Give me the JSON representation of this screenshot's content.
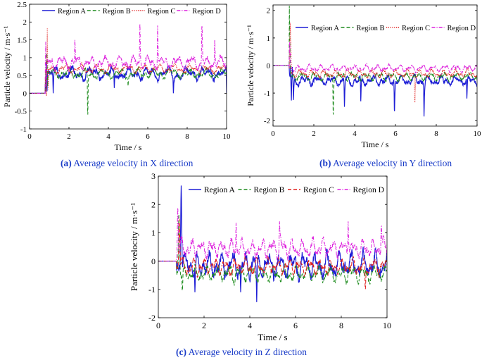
{
  "figure": {
    "colors": {
      "region_a": "#1f1fd6",
      "region_b": "#1e8c1e",
      "region_c": "#e0201f",
      "region_d": "#dd22dd",
      "axis": "#000000",
      "caption": "#1a3cc8"
    }
  },
  "chart_data": [
    {
      "id": "a",
      "type": "line",
      "caption_label": "(a)",
      "caption_text": "Average velocity in X direction",
      "xlabel": "Time / s",
      "ylabel": "Particle velocity / m·s⁻¹",
      "xlim": [
        0,
        10
      ],
      "ylim": [
        -1,
        2.5
      ],
      "xticks": [
        "0",
        "2",
        "4",
        "6",
        "8",
        "10"
      ],
      "yticks": [
        "-1",
        "-0.5",
        "0",
        "0.5",
        "1",
        "1.5",
        "2",
        "2.5"
      ],
      "legend_position": "top",
      "series": [
        {
          "name": "Region A",
          "dash": "solid",
          "mean": 0.55,
          "amp": 0.22,
          "spike_t": 0.85,
          "spike_v": 1.0,
          "dips": [
            [
              1.2,
              0.0
            ],
            [
              4.3,
              0.15
            ],
            [
              7.3,
              0.0
            ],
            [
              10.0,
              0.0
            ]
          ]
        },
        {
          "name": "Region B",
          "dash": "dashed",
          "mean": 0.55,
          "amp": 0.16,
          "spike_t": 0.88,
          "spike_v": 1.2,
          "dips": [
            [
              2.95,
              -0.78
            ],
            [
              5.0,
              0.2
            ]
          ]
        },
        {
          "name": "Region C",
          "dash": "dotted",
          "mean": 0.68,
          "amp": 0.15,
          "spike_t": 0.9,
          "spike_v": 1.82,
          "dips": []
        },
        {
          "name": "Region D",
          "dash": "dashdot",
          "mean": 0.86,
          "amp": 0.22,
          "spike_t": 0.82,
          "spike_v": 1.4,
          "peaks": [
            [
              2.3,
              1.5
            ],
            [
              5.6,
              1.95
            ],
            [
              6.5,
              1.9
            ],
            [
              8.75,
              2.02
            ],
            [
              9.4,
              1.5
            ]
          ]
        }
      ]
    },
    {
      "id": "b",
      "type": "line",
      "caption_label": "(b)",
      "caption_text": "Average velocity in Y direction",
      "xlabel": "Time / s",
      "ylabel": "Particle velocity / m·s⁻¹",
      "xlim": [
        0,
        10
      ],
      "ylim": [
        -2.2,
        2.2
      ],
      "xticks": [
        "0",
        "2",
        "4",
        "6",
        "8",
        "10"
      ],
      "yticks": [
        "-2",
        "-1",
        "0",
        "1",
        "2"
      ],
      "legend_position": "top",
      "series": [
        {
          "name": "Region A",
          "dash": "solid",
          "mean": -0.55,
          "amp": 0.22,
          "spike_t": 0.9,
          "spike_v": -1.3,
          "dips": [
            [
              1.0,
              -1.25
            ],
            [
              3.5,
              -1.5
            ],
            [
              4.3,
              -1.3
            ],
            [
              5.95,
              -1.85
            ],
            [
              7.4,
              -1.85
            ],
            [
              9.5,
              -1.2
            ]
          ]
        },
        {
          "name": "Region B",
          "dash": "dashed",
          "mean": -0.4,
          "amp": 0.18,
          "spike_t": 0.8,
          "spike_v": 2.05,
          "dips": [
            [
              2.95,
              -2.0
            ]
          ]
        },
        {
          "name": "Region C",
          "dash": "dotted",
          "mean": -0.3,
          "amp": 0.18,
          "spike_t": 0.85,
          "spike_v": 1.7,
          "dips": [
            [
              6.95,
              -1.5
            ]
          ]
        },
        {
          "name": "Region D",
          "dash": "dashdot",
          "mean": -0.1,
          "amp": 0.15,
          "spike_t": 0.82,
          "spike_v": 0.8,
          "dips": []
        }
      ]
    },
    {
      "id": "c",
      "type": "line",
      "caption_label": "(c)",
      "caption_text": "Average velocity in Z direction",
      "xlabel": "Time / s",
      "ylabel": "Particle velocity / m·s⁻¹",
      "xlim": [
        0,
        10
      ],
      "ylim": [
        -2,
        3
      ],
      "xticks": [
        "0",
        "2",
        "4",
        "6",
        "8",
        "10"
      ],
      "yticks": [
        "-2",
        "-1",
        "0",
        "1",
        "2",
        "3"
      ],
      "legend_position": "top",
      "series": [
        {
          "name": "Region A",
          "dash": "solid",
          "mean": -0.15,
          "amp": 0.55,
          "spike_t": 1.0,
          "spike_v": 2.8,
          "dips": [
            [
              4.3,
              -1.45
            ],
            [
              3.6,
              -1.1
            ],
            [
              1.6,
              -1.1
            ]
          ]
        },
        {
          "name": "Region B",
          "dash": "dashed",
          "mean": -0.45,
          "amp": 0.35,
          "spike_t": 0.9,
          "spike_v": 1.8,
          "dips": [
            [
              1.05,
              -1.15
            ]
          ]
        },
        {
          "name": "Region C",
          "dash": "dashed",
          "mean": -0.2,
          "amp": 0.35,
          "spike_t": 0.92,
          "spike_v": 1.6,
          "dips": [
            [
              9.05,
              -1.15
            ]
          ]
        },
        {
          "name": "Region D",
          "dash": "dashdot",
          "mean": 0.45,
          "amp": 0.4,
          "spike_t": 0.85,
          "spike_v": 2.0,
          "peaks": [
            [
              3.4,
              1.35
            ],
            [
              5.3,
              1.4
            ],
            [
              8.3,
              1.4
            ],
            [
              9.75,
              1.35
            ]
          ]
        }
      ]
    }
  ]
}
